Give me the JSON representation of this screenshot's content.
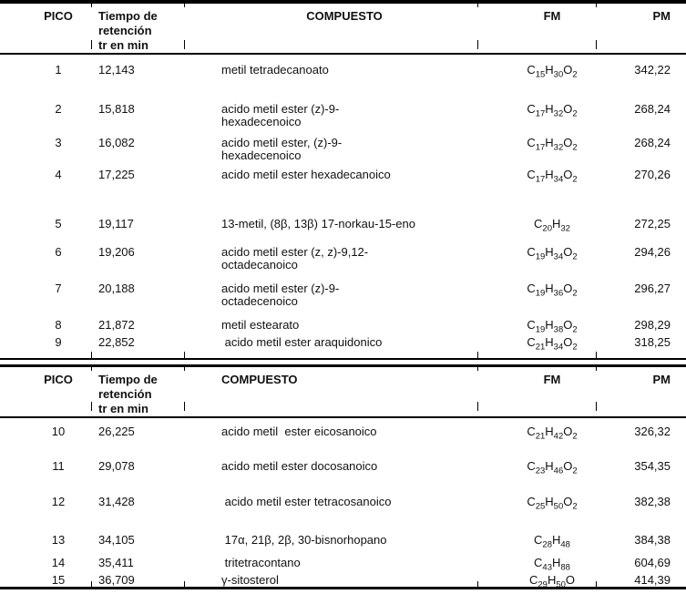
{
  "page": {
    "background": "#ffffff",
    "text_color": "#111111",
    "border_color": "#000000"
  },
  "tables": [
    {
      "name": "peaks-1-9",
      "header": {
        "pico": "PICO",
        "tiempo": "Tiempo de\nretención\ntr en min",
        "compuesto": "COMPUESTO",
        "fm": "FM",
        "pm": "PM"
      },
      "rows": [
        {
          "pico": "1",
          "tr": "12,143",
          "compuesto": "metil tetradecanoato",
          "fm": "C15H30O2",
          "pm": "342,22"
        },
        {
          "pico": "2",
          "tr": "15,818",
          "compuesto": "acido metil ester (z)-9-\nhexadecenoico",
          "fm": "C17H32O2",
          "pm": "268,24"
        },
        {
          "pico": "3",
          "tr": "16,082",
          "compuesto": "acido metil ester, (z)-9-\nhexadecenoico",
          "fm": "C17H32O2",
          "pm": "268,24"
        },
        {
          "pico": "4",
          "tr": "17,225",
          "compuesto": "acido metil ester hexadecanoico",
          "fm": "C17H34O2",
          "pm": "270,26"
        },
        {
          "pico": "5",
          "tr": "19,117",
          "compuesto": "13-metil, (8β, 13β) 17-norkau-15-eno",
          "fm": "C20H32",
          "pm": "272,25"
        },
        {
          "pico": "6",
          "tr": "19,206",
          "compuesto": "acido metil ester (z, z)-9,12-\noctadecanoico",
          "fm": "C19H34O2",
          "pm": "294,26"
        },
        {
          "pico": "7",
          "tr": "20,188",
          "compuesto": "acido metil ester (z)-9-\noctadecenoico",
          "fm": "C19H36O2",
          "pm": "296,27"
        },
        {
          "pico": "8",
          "tr": "21,872",
          "compuesto": "metil estearato",
          "fm": "C19H38O2",
          "pm": "298,29"
        },
        {
          "pico": "9",
          "tr": "22,852",
          "compuesto": " acido metil ester araquidonico",
          "fm": "C21H34O2",
          "pm": "318,25"
        }
      ]
    },
    {
      "name": "peaks-10-15",
      "header": {
        "pico": "PICO",
        "tiempo": "Tiempo de\nretención\ntr en min",
        "compuesto": "COMPUESTO",
        "fm": "FM",
        "pm": "PM"
      },
      "rows": [
        {
          "pico": "10",
          "tr": "26,225",
          "compuesto": "acido metil  ester eicosanoico",
          "fm": "C21H42O2",
          "pm": "326,32"
        },
        {
          "pico": "11",
          "tr": "29,078",
          "compuesto": "acido metil ester docosanoico",
          "fm": "C23H46O2",
          "pm": "354,35"
        },
        {
          "pico": "12",
          "tr": "31,428",
          "compuesto": " acido metil ester tetracosanoico",
          "fm": "C25H50O2",
          "pm": "382,38"
        },
        {
          "pico": "13",
          "tr": "34,105",
          "compuesto": " 17α, 21β, 2β, 30-bisnorhopano",
          "fm": "C28H48",
          "pm": "384,38"
        },
        {
          "pico": "14",
          "tr": "35,411",
          "compuesto": " tritetracontano",
          "fm": "C43H88",
          "pm": "604,69"
        },
        {
          "pico": "15",
          "tr": "36,709",
          "compuesto": "γ-sitosterol",
          "fm": "C29H50O",
          "pm": "414,39"
        }
      ]
    }
  ]
}
